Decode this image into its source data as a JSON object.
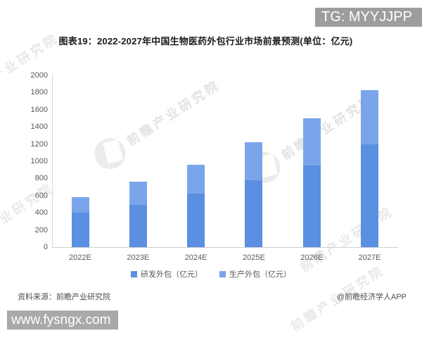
{
  "badge": {
    "text": "TG: MYYJJPP"
  },
  "title": "图表19：2022-2027年中国生物医药外包行业市场前景预测(单位：亿元)",
  "watermark": {
    "text": "前瞻产业研究院"
  },
  "chart_data": {
    "type": "bar",
    "stacked": true,
    "title": "图表19：2022-2027年中国生物医药外包行业市场前景预测(单位：亿元)",
    "unit": "亿元",
    "categories": [
      "2022E",
      "2023E",
      "2024E",
      "2025E",
      "2026E",
      "2027E"
    ],
    "series": [
      {
        "name": "研发外包（亿元）",
        "color": "#5a8fe2",
        "values": [
          400,
          490,
          620,
          780,
          950,
          1200
        ]
      },
      {
        "name": "生产外包（亿元）",
        "color": "#7aa5ea",
        "values": [
          180,
          270,
          340,
          440,
          550,
          630
        ]
      }
    ],
    "totals": [
      580,
      760,
      960,
      1220,
      1500,
      1830
    ],
    "ylim": [
      0,
      2000
    ],
    "ytick_step": 200,
    "grid": false,
    "legend_position": "bottom"
  },
  "footer": {
    "source": "资料来源：前瞻产业研究院",
    "credit": "@前瞻经济学人APP",
    "url": "www.fysngx.com"
  }
}
